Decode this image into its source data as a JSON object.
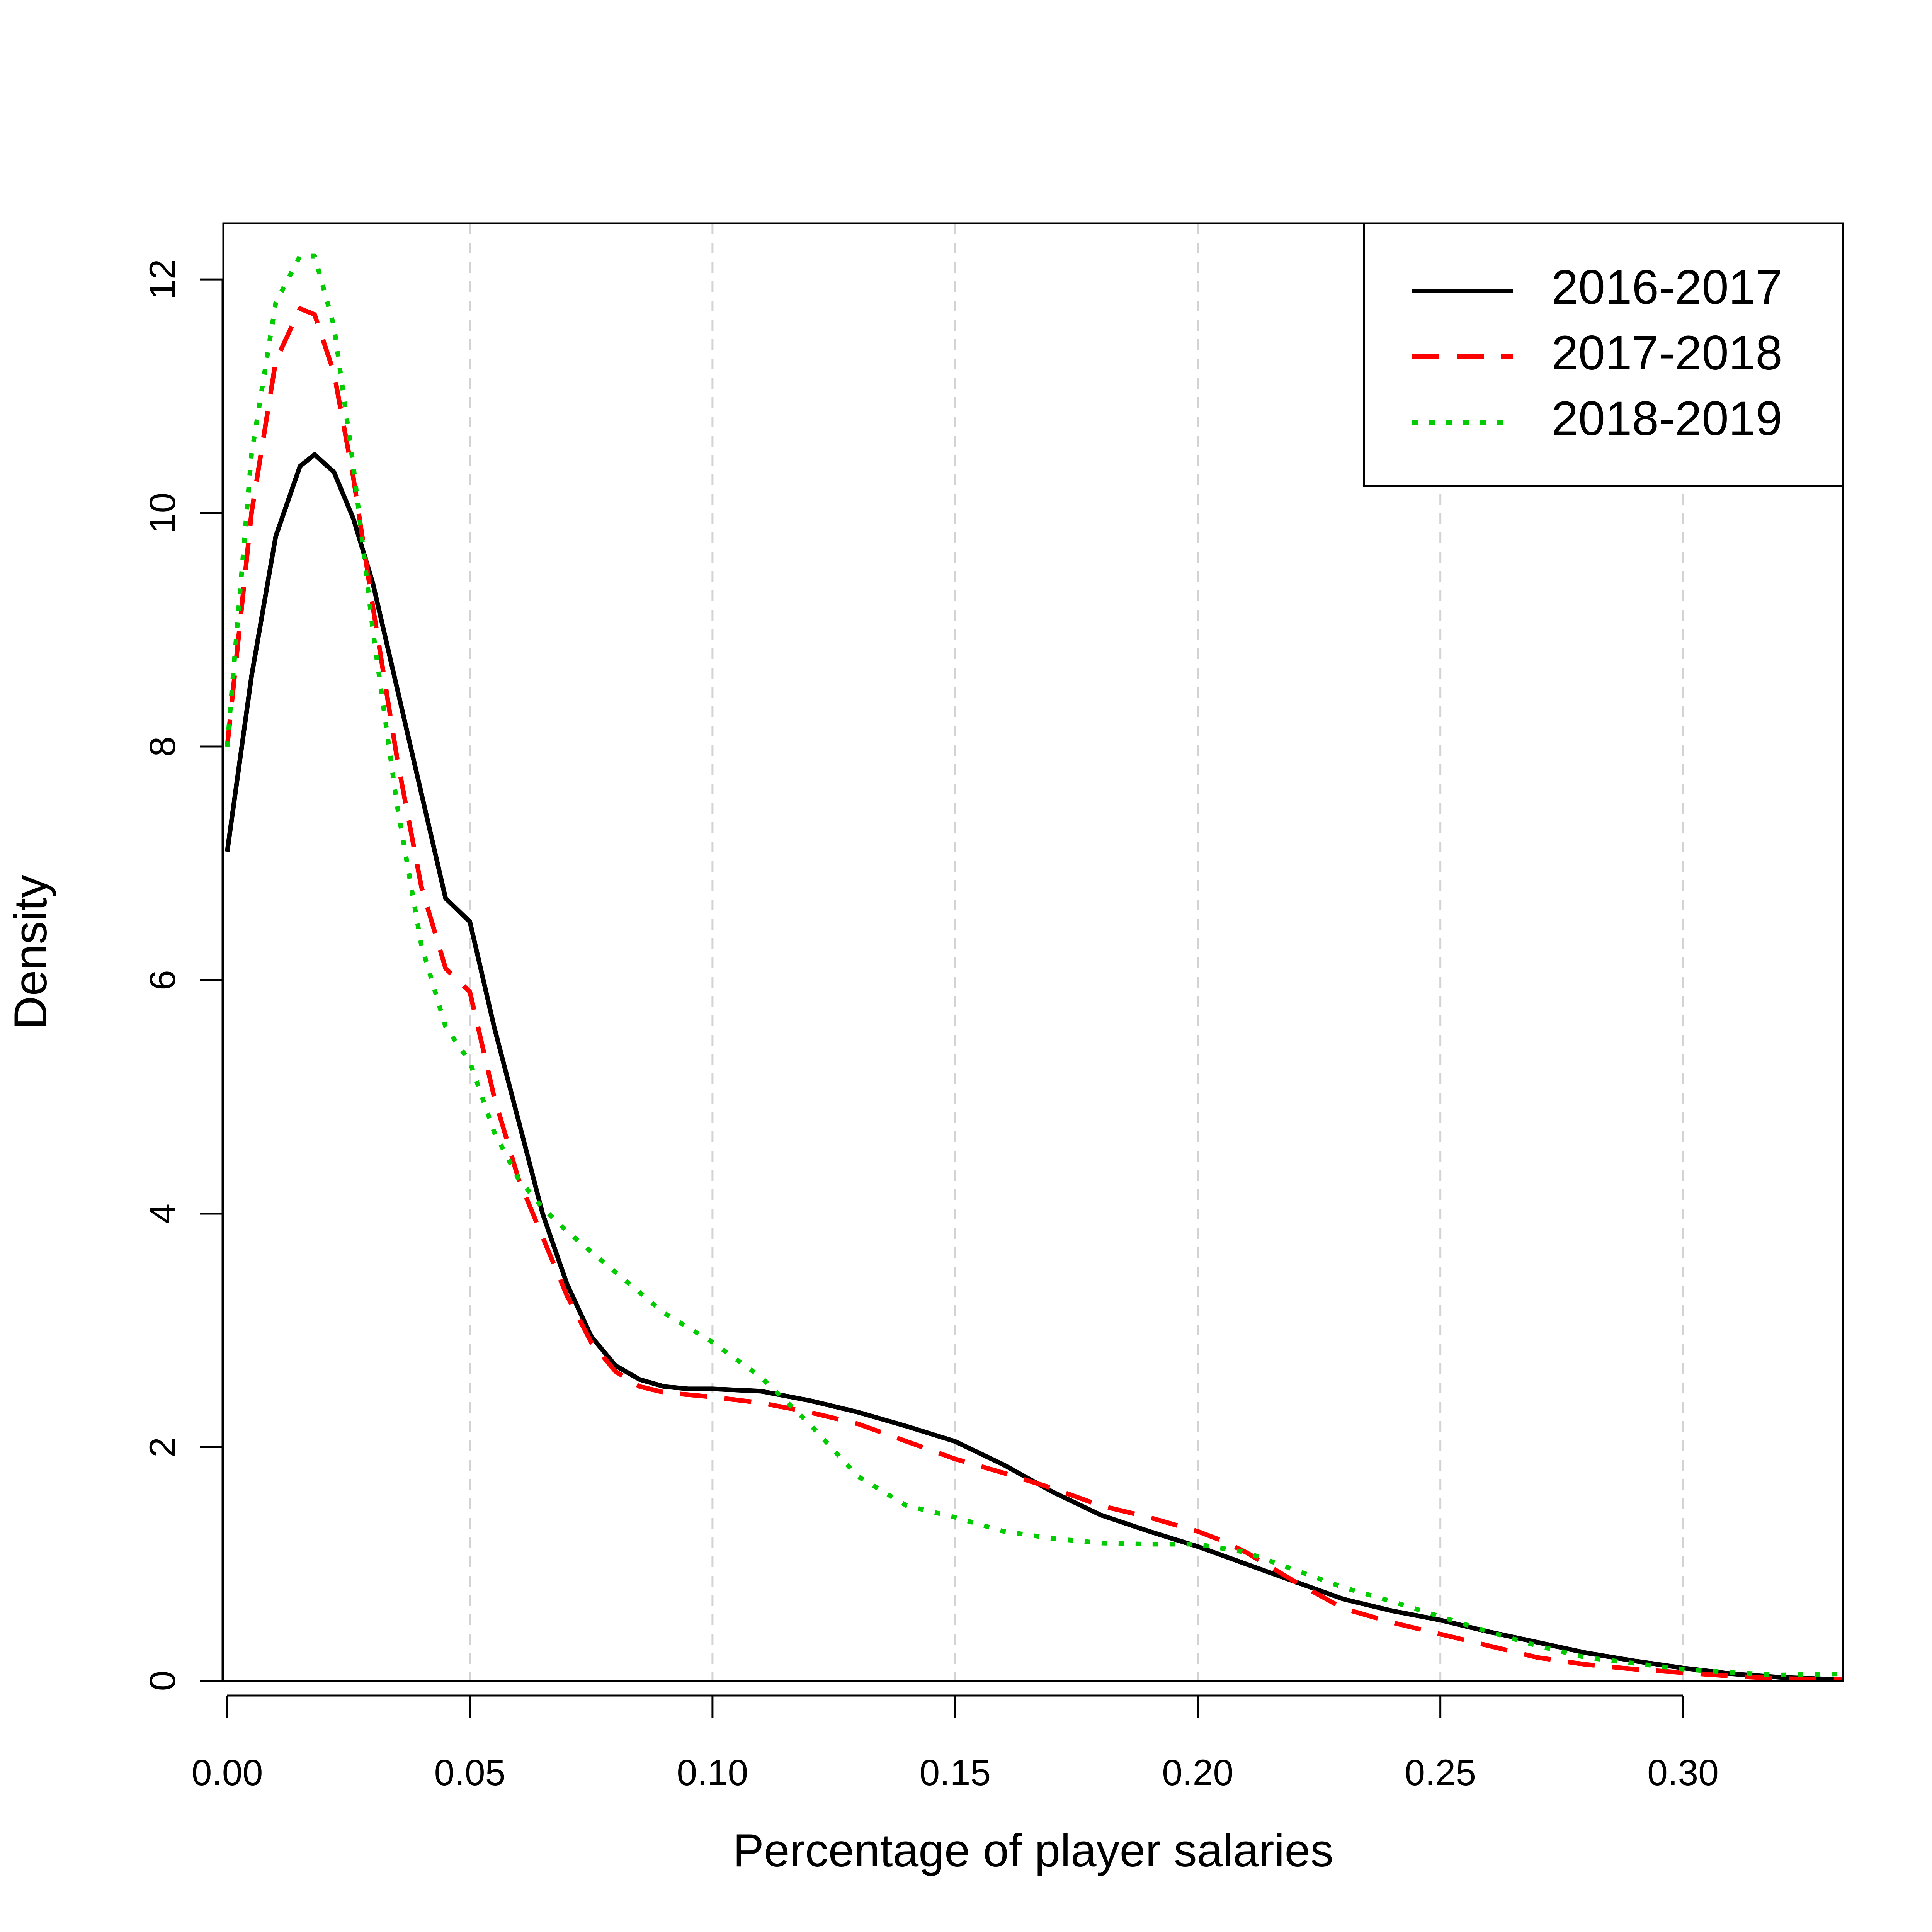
{
  "chart_data": {
    "type": "line",
    "title": "",
    "xlabel": "Percentage of player salaries",
    "ylabel": "Density",
    "xlim": [
      -0.0008,
      0.333
    ],
    "ylim": [
      0,
      12.48
    ],
    "x_ticks": [
      0.0,
      0.05,
      0.1,
      0.15,
      0.2,
      0.25,
      0.3
    ],
    "x_tick_labels": [
      "0.00",
      "0.05",
      "0.10",
      "0.15",
      "0.20",
      "0.25",
      "0.30"
    ],
    "y_ticks": [
      0,
      2,
      4,
      6,
      8,
      10,
      12
    ],
    "y_tick_labels": [
      "0",
      "2",
      "4",
      "6",
      "8",
      "10",
      "12"
    ],
    "grid": "vertical dashed gray at x ticks",
    "legend_position": "top-right",
    "series": [
      {
        "name": "2016-2017",
        "color": "#000000",
        "style": "solid",
        "x": [
          0.0,
          0.005,
          0.01,
          0.015,
          0.018,
          0.022,
          0.026,
          0.03,
          0.035,
          0.04,
          0.045,
          0.05,
          0.055,
          0.06,
          0.065,
          0.07,
          0.075,
          0.08,
          0.085,
          0.09,
          0.095,
          0.1,
          0.11,
          0.12,
          0.13,
          0.14,
          0.15,
          0.16,
          0.17,
          0.18,
          0.19,
          0.2,
          0.21,
          0.22,
          0.23,
          0.24,
          0.25,
          0.26,
          0.27,
          0.28,
          0.29,
          0.3,
          0.31,
          0.32,
          0.333
        ],
        "y": [
          7.1,
          8.6,
          9.8,
          10.4,
          10.5,
          10.35,
          9.95,
          9.4,
          8.5,
          7.6,
          6.7,
          6.5,
          5.6,
          4.8,
          4.0,
          3.4,
          2.95,
          2.7,
          2.58,
          2.52,
          2.5,
          2.5,
          2.48,
          2.4,
          2.3,
          2.18,
          2.05,
          1.85,
          1.62,
          1.42,
          1.28,
          1.15,
          1.0,
          0.85,
          0.7,
          0.6,
          0.52,
          0.42,
          0.33,
          0.24,
          0.17,
          0.11,
          0.06,
          0.03,
          0.01
        ]
      },
      {
        "name": "2017-2018",
        "color": "#ff0000",
        "style": "dashed",
        "x": [
          0.0,
          0.005,
          0.01,
          0.015,
          0.018,
          0.022,
          0.026,
          0.03,
          0.035,
          0.04,
          0.045,
          0.05,
          0.055,
          0.06,
          0.065,
          0.07,
          0.075,
          0.08,
          0.085,
          0.09,
          0.095,
          0.1,
          0.11,
          0.12,
          0.13,
          0.14,
          0.15,
          0.16,
          0.17,
          0.18,
          0.19,
          0.2,
          0.205,
          0.21,
          0.22,
          0.23,
          0.24,
          0.25,
          0.26,
          0.27,
          0.28,
          0.29,
          0.3,
          0.31,
          0.32,
          0.333
        ],
        "y": [
          8.0,
          10.0,
          11.3,
          11.75,
          11.7,
          11.2,
          10.3,
          9.2,
          7.9,
          6.8,
          6.1,
          5.9,
          5.0,
          4.3,
          3.8,
          3.3,
          2.9,
          2.65,
          2.52,
          2.47,
          2.45,
          2.43,
          2.38,
          2.3,
          2.2,
          2.05,
          1.9,
          1.78,
          1.65,
          1.5,
          1.4,
          1.28,
          1.2,
          1.1,
          0.85,
          0.62,
          0.5,
          0.4,
          0.3,
          0.2,
          0.14,
          0.1,
          0.07,
          0.04,
          0.02,
          0.01
        ]
      },
      {
        "name": "2018-2019",
        "color": "#00cc00",
        "style": "dotted",
        "x": [
          0.0,
          0.005,
          0.01,
          0.015,
          0.018,
          0.022,
          0.026,
          0.03,
          0.035,
          0.04,
          0.045,
          0.05,
          0.055,
          0.06,
          0.065,
          0.07,
          0.08,
          0.09,
          0.1,
          0.11,
          0.12,
          0.13,
          0.14,
          0.15,
          0.16,
          0.17,
          0.18,
          0.19,
          0.2,
          0.21,
          0.22,
          0.23,
          0.24,
          0.25,
          0.26,
          0.27,
          0.28,
          0.29,
          0.3,
          0.31,
          0.32,
          0.333
        ],
        "y": [
          8.0,
          10.5,
          11.8,
          12.2,
          12.2,
          11.6,
          10.4,
          9.0,
          7.5,
          6.3,
          5.6,
          5.3,
          4.7,
          4.3,
          4.05,
          3.85,
          3.5,
          3.15,
          2.9,
          2.6,
          2.2,
          1.75,
          1.5,
          1.4,
          1.28,
          1.22,
          1.18,
          1.17,
          1.17,
          1.1,
          0.95,
          0.8,
          0.68,
          0.55,
          0.42,
          0.3,
          0.2,
          0.15,
          0.1,
          0.07,
          0.05,
          0.06
        ]
      }
    ]
  }
}
